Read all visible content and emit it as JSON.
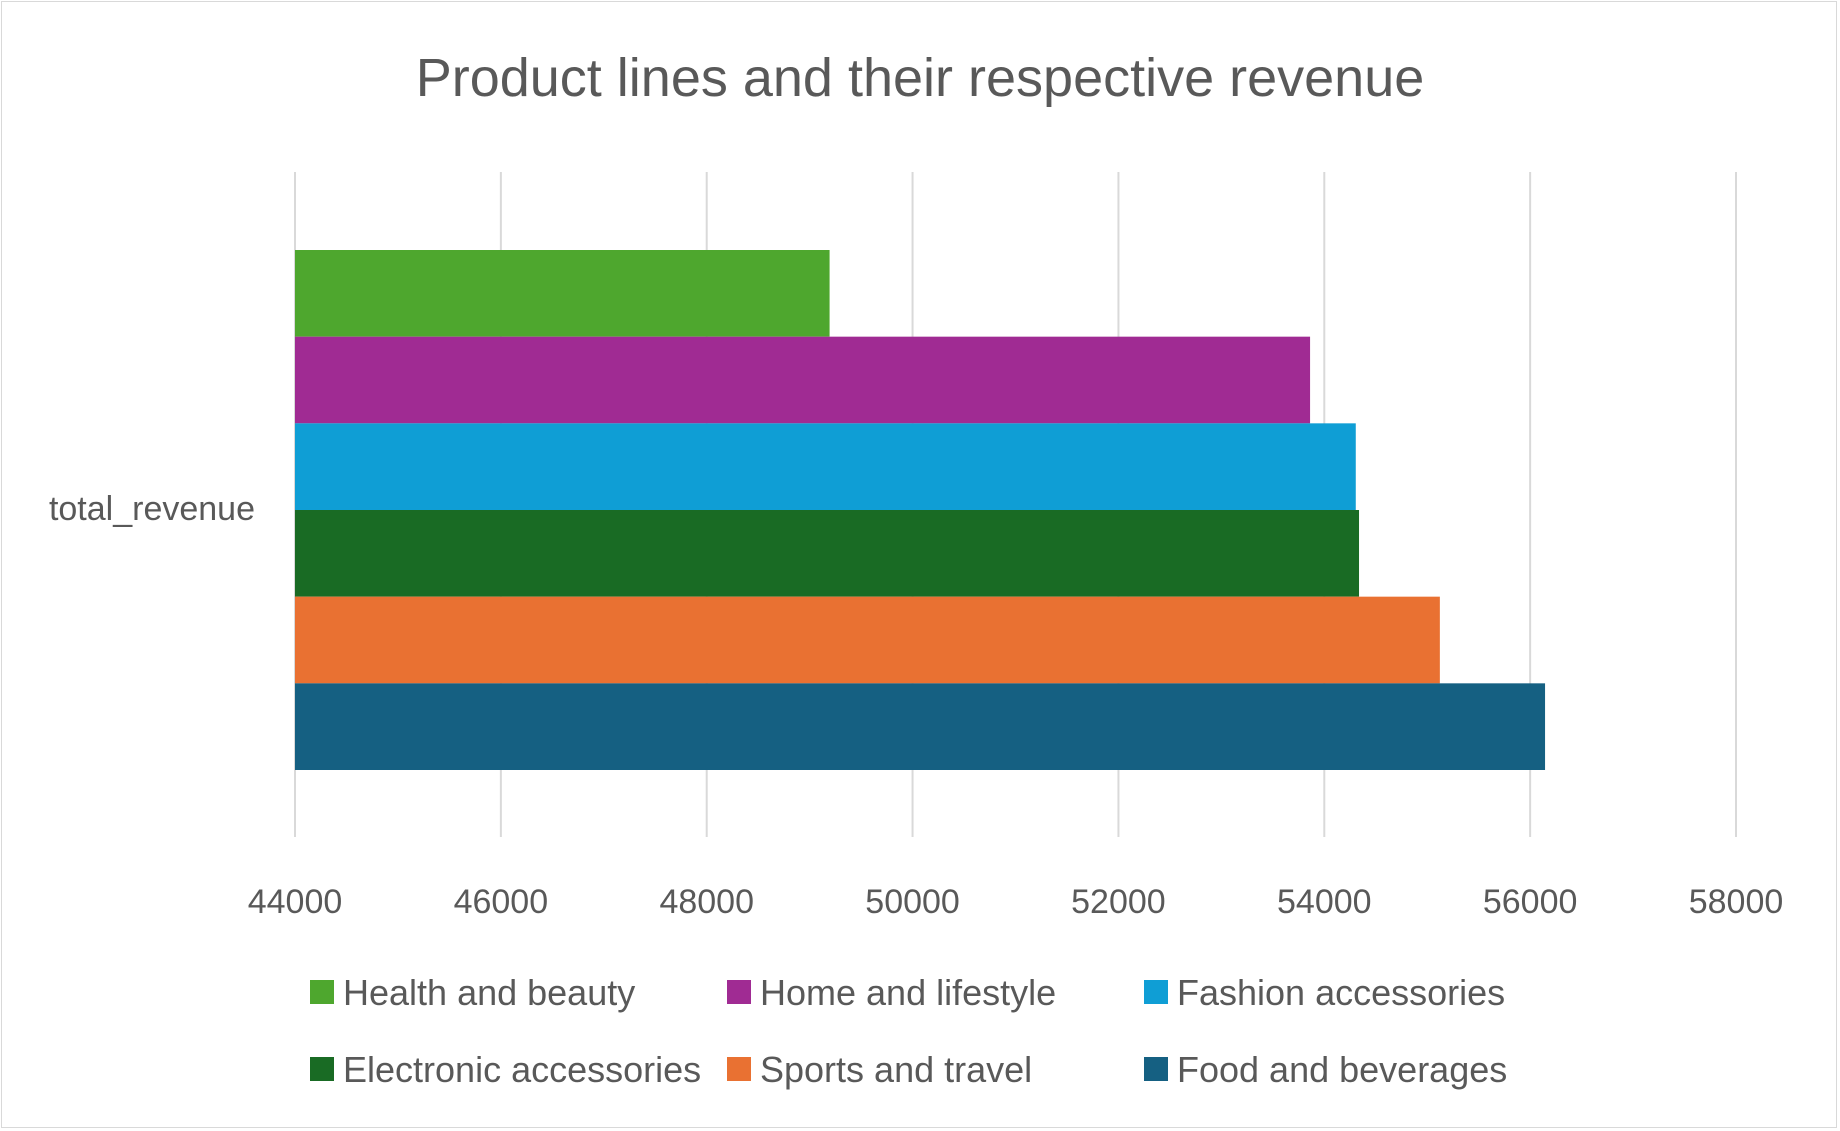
{
  "chart_data": {
    "type": "bar",
    "orientation": "horizontal",
    "title": "Product lines and their respective revenue",
    "categories": [
      "total_revenue"
    ],
    "series": [
      {
        "name": "Health and beauty",
        "values": [
          49193.74
        ],
        "color": "#4ea72e"
      },
      {
        "name": "Home and lifestyle",
        "values": [
          53861.91
        ],
        "color": "#a02b93"
      },
      {
        "name": "Fashion accessories",
        "values": [
          54305.9
        ],
        "color": "#0f9ed5"
      },
      {
        "name": "Electronic accessories",
        "values": [
          54337.53
        ],
        "color": "#196b24"
      },
      {
        "name": "Sports and travel",
        "values": [
          55122.83
        ],
        "color": "#e97132"
      },
      {
        "name": "Food and beverages",
        "values": [
          56144.84
        ],
        "color": "#156082"
      }
    ],
    "xlim": [
      44000,
      58000
    ],
    "xticks": [
      "44000",
      "46000",
      "48000",
      "50000",
      "52000",
      "54000",
      "56000",
      "58000"
    ],
    "grid": "vertical",
    "legend": "bottom"
  }
}
